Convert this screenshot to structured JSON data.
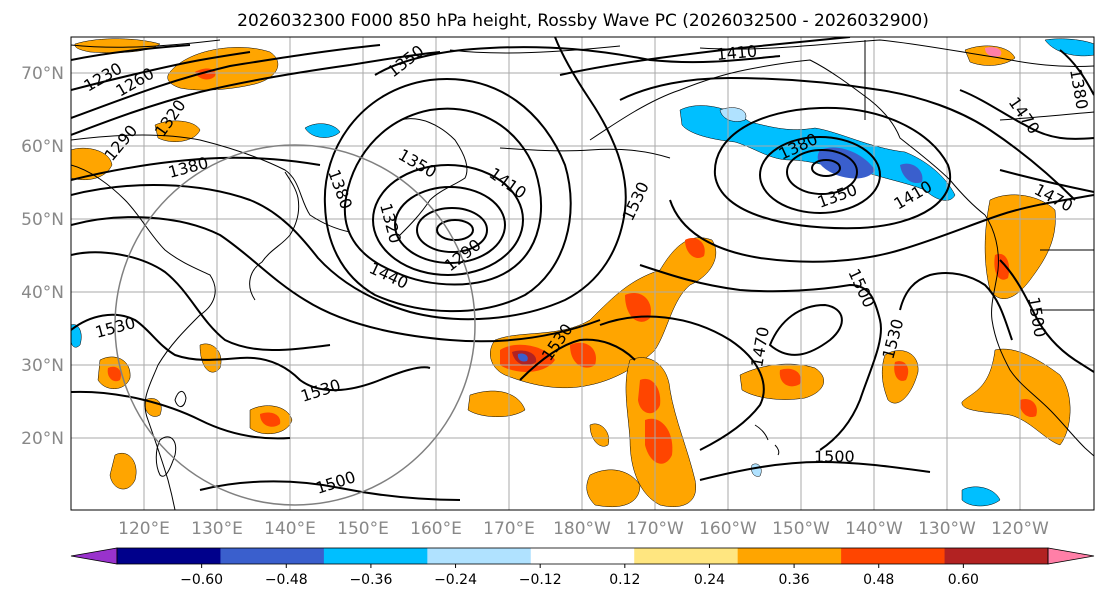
{
  "title": "2026032300 F000 850 hPa height, Rossby Wave PC (2026032500 - 2026032900)",
  "map": {
    "lat_labels": [
      "70°N",
      "60°N",
      "50°N",
      "40°N",
      "30°N",
      "20°N"
    ],
    "lon_labels": [
      "120°E",
      "130°E",
      "140°E",
      "150°E",
      "160°E",
      "170°E",
      "180°W",
      "170°W",
      "160°W",
      "150°W",
      "140°W",
      "130°W",
      "120°W"
    ],
    "contour_labels": {
      "c1230": "1230",
      "c1260": "1260",
      "c1320a": "1320",
      "c1290a": "1290",
      "c1350a": "1350",
      "c1380a": "1380",
      "c1380b": "1380",
      "c1350b": "1350",
      "c1410a": "1410",
      "c1320b": "1320",
      "c1290b": "1290",
      "c1440": "1440",
      "c1530a": "1530",
      "c1530b": "1530",
      "c1530c": "1530",
      "c1500a": "1500",
      "c1410b": "1410",
      "c1380c": "1380",
      "c1350c": "1350",
      "c1410c": "1410",
      "c1470a": "1470",
      "c1470b": "1470",
      "c1500b": "1500",
      "c1530d": "1530",
      "c1500c": "1500",
      "c1500d": "1500",
      "c1530e": "1530",
      "c1470c": "1470",
      "c1380d": "1380"
    }
  },
  "colorbar": {
    "ticks": [
      "−0.60",
      "−0.48",
      "−0.36",
      "−0.24",
      "−0.12",
      "0.12",
      "0.24",
      "0.36",
      "0.48",
      "0.60"
    ],
    "colors": [
      "#9932cc",
      "#00008b",
      "#3a5fcd",
      "#00bfff",
      "#b0e2ff",
      "#ffffff",
      "#ffe680",
      "#ffa500",
      "#ff4500",
      "#b22222",
      "#ff7fa7"
    ]
  }
}
